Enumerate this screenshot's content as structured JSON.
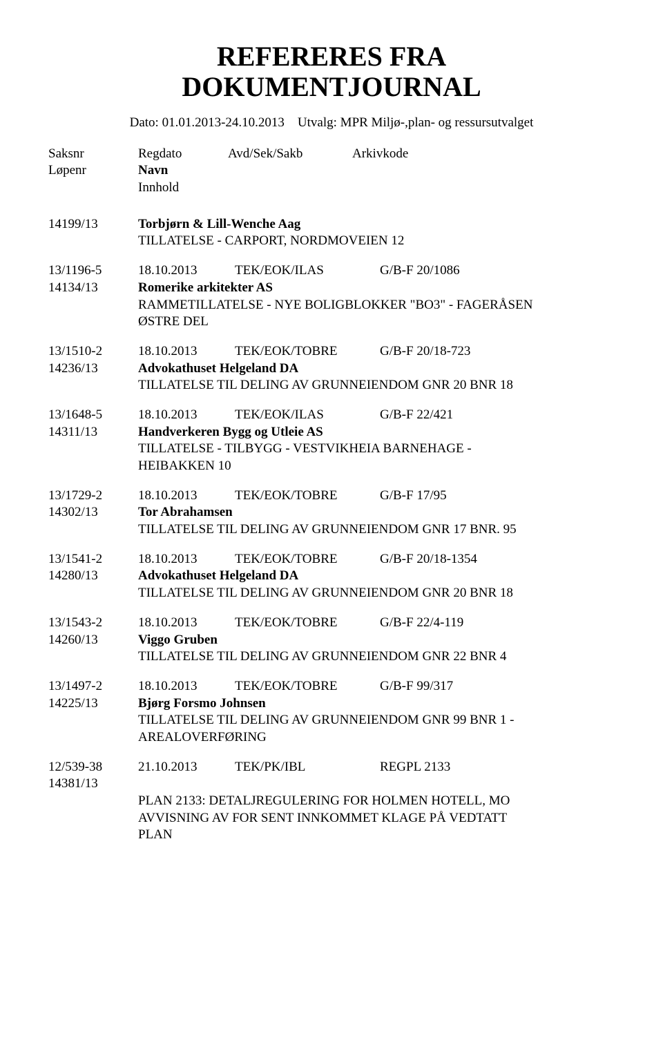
{
  "title_line1": "REFERERES FRA",
  "title_line2": "DOKUMENTJOURNAL",
  "date_label": "Dato:",
  "date_value": "01.01.2013-24.10.2013",
  "utvalg_label": "Utvalg:",
  "utvalg_value": "MPR Miljø-,plan- og ressursutvalget",
  "header": {
    "saksnr": "Saksnr",
    "lopenr": "Løpenr",
    "regdato": "Regdato",
    "navn": "Navn",
    "innhold": "Innhold",
    "avdseksakb": "Avd/Sek/Sakb",
    "arkivkode": "Arkivkode"
  },
  "first_entry": {
    "lopenr": "14199/13",
    "navn": "Torbjørn & Lill-Wenche Aag",
    "desc": "TILLATELSE - CARPORT, NORDMOVEIEN 12"
  },
  "entries": [
    {
      "saksnr": "13/1196-5",
      "regdato": "18.10.2013",
      "avd": "TEK/EOK/ILAS",
      "arkivkode": "G/B-F 20/1086",
      "lopenr": "14134/13",
      "navn": "Romerike arkitekter AS",
      "desc1": "RAMMETILLATELSE - NYE BOLIGBLOKKER \"BO3\" - FAGERÅSEN",
      "desc2": "ØSTRE DEL"
    },
    {
      "saksnr": "13/1510-2",
      "regdato": "18.10.2013",
      "avd": "TEK/EOK/TOBRE",
      "arkivkode": "G/B-F 20/18-723",
      "lopenr": "14236/13",
      "navn": "Advokathuset Helgeland DA",
      "desc1": "TILLATELSE TIL DELING AV GRUNNEIENDOM GNR 20 BNR 18",
      "desc2": ""
    },
    {
      "saksnr": "13/1648-5",
      "regdato": "18.10.2013",
      "avd": "TEK/EOK/ILAS",
      "arkivkode": "G/B-F 22/421",
      "lopenr": "14311/13",
      "navn": "Handverkeren Bygg og Utleie AS",
      "desc1": "TILLATELSE - TILBYGG - VESTVIKHEIA BARNEHAGE -",
      "desc2": "HEIBAKKEN 10"
    },
    {
      "saksnr": "13/1729-2",
      "regdato": "18.10.2013",
      "avd": "TEK/EOK/TOBRE",
      "arkivkode": "G/B-F 17/95",
      "lopenr": "14302/13",
      "navn": "Tor Abrahamsen",
      "desc1": "TILLATELSE TIL DELING AV GRUNNEIENDOM GNR 17 BNR. 95",
      "desc2": ""
    },
    {
      "saksnr": "13/1541-2",
      "regdato": "18.10.2013",
      "avd": "TEK/EOK/TOBRE",
      "arkivkode": "G/B-F 20/18-1354",
      "lopenr": "14280/13",
      "navn": "Advokathuset Helgeland DA",
      "desc1": "TILLATELSE TIL DELING AV GRUNNEIENDOM GNR 20 BNR 18",
      "desc2": ""
    },
    {
      "saksnr": "13/1543-2",
      "regdato": "18.10.2013",
      "avd": "TEK/EOK/TOBRE",
      "arkivkode": "G/B-F 22/4-119",
      "lopenr": "14260/13",
      "navn": "Viggo Gruben",
      "desc1": "TILLATELSE TIL DELING AV GRUNNEIENDOM GNR 22 BNR 4",
      "desc2": ""
    },
    {
      "saksnr": "13/1497-2",
      "regdato": "18.10.2013",
      "avd": "TEK/EOK/TOBRE",
      "arkivkode": "G/B-F 99/317",
      "lopenr": "14225/13",
      "navn": "Bjørg Forsmo Johnsen",
      "desc1": "TILLATELSE TIL DELING AV GRUNNEIENDOM GNR 99 BNR 1 -",
      "desc2": "AREALOVERFØRING"
    },
    {
      "saksnr": "12/539-38",
      "regdato": "21.10.2013",
      "avd": "TEK/PK/IBL",
      "arkivkode": "REGPL 2133",
      "lopenr": "14381/13",
      "navn": "",
      "desc1": "PLAN 2133: DETALJREGULERING FOR HOLMEN HOTELL, MO",
      "desc2": "AVVISNING AV FOR SENT INNKOMMET KLAGE PÅ VEDTATT",
      "desc3": "PLAN"
    }
  ]
}
